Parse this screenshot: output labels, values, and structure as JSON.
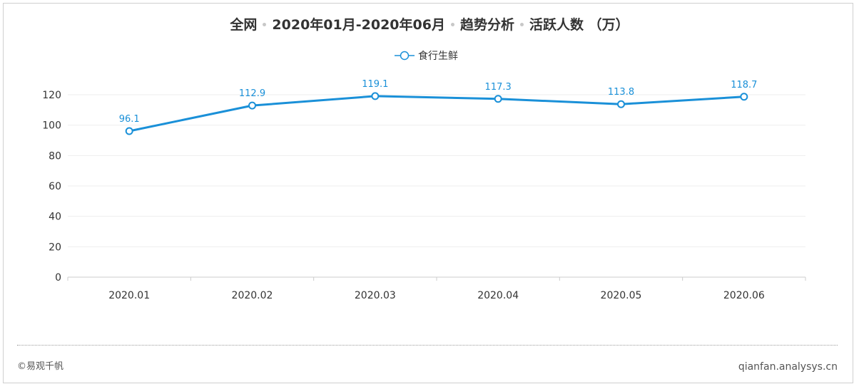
{
  "title": {
    "segments": [
      "全网",
      "2020年01月-2020年06月",
      "趋势分析",
      "活跃人数 （万）"
    ]
  },
  "legend": {
    "series_name": "食行生鲜",
    "marker_icon": "line-circle-icon"
  },
  "footer": {
    "copyright": "©易观千帆",
    "site": "qianfan.analysys.cn"
  },
  "colors": {
    "series": "#1a90d8",
    "grid": "#eeeeee",
    "axis": "#cccccc",
    "text": "#333333"
  },
  "chart_data": {
    "type": "line",
    "categories": [
      "2020.01",
      "2020.02",
      "2020.03",
      "2020.04",
      "2020.05",
      "2020.06"
    ],
    "series": [
      {
        "name": "食行生鲜",
        "values": [
          96.1,
          112.9,
          119.1,
          117.3,
          113.8,
          118.7
        ],
        "labels": [
          "96.1",
          "112.9",
          "119.1",
          "117.3",
          "113.8",
          "118.7"
        ]
      }
    ],
    "yticks": [
      "0",
      "20",
      "40",
      "60",
      "80",
      "100",
      "120"
    ],
    "ylim": [
      0,
      120
    ],
    "grid": true,
    "legend_position": "top-center"
  }
}
